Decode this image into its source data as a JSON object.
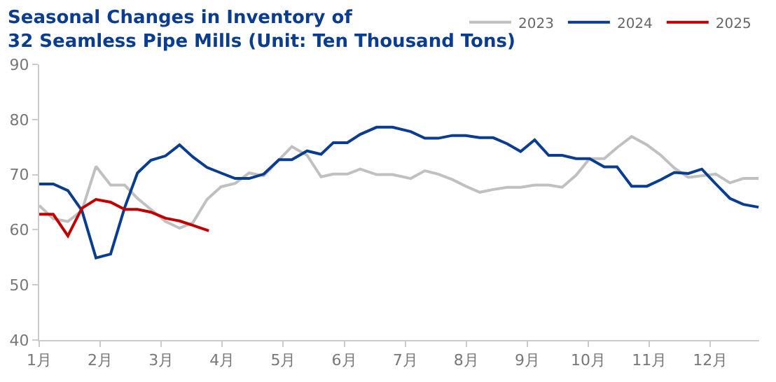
{
  "chart_data": {
    "type": "line",
    "title": "Seasonal Changes in Inventory of\n32 Seamless Pipe Mills (Unit: Ten Thousand Tons)",
    "x": [
      1.0,
      1.23,
      1.47,
      1.7,
      1.93,
      2.17,
      2.4,
      2.61,
      2.83,
      3.07,
      3.3,
      3.52,
      3.75,
      3.98,
      4.21,
      4.44,
      4.68,
      4.93,
      5.14,
      5.39,
      5.62,
      5.82,
      6.05,
      6.26,
      6.53,
      6.79,
      7.09,
      7.32,
      7.54,
      7.77,
      7.99,
      8.22,
      8.44,
      8.67,
      8.89,
      9.12,
      9.35,
      9.57,
      9.8,
      10.02,
      10.26,
      10.47,
      10.71,
      10.96,
      11.19,
      11.41,
      11.64,
      11.86,
      12.09,
      12.32,
      12.54,
      12.79
    ],
    "series": [
      {
        "name": "2023",
        "color": "#c0c0c0",
        "values": [
          64.4,
          62.0,
          61.5,
          63.5,
          71.5,
          68.1,
          68.1,
          65.7,
          63.7,
          61.5,
          60.3,
          61.3,
          65.5,
          67.8,
          68.4,
          70.3,
          69.8,
          72.7,
          75.1,
          73.5,
          69.6,
          70.1,
          70.1,
          71.0,
          70.0,
          70.0,
          69.3,
          70.7,
          70.1,
          69.1,
          67.9,
          66.8,
          67.3,
          67.7,
          67.7,
          68.1,
          68.1,
          67.7,
          69.9,
          72.9,
          72.9,
          74.9,
          76.9,
          75.4,
          73.5,
          71.2,
          69.5,
          69.8,
          70.1,
          68.5,
          69.3,
          69.3
        ]
      },
      {
        "name": "2024",
        "color": "#0a3d8f",
        "values": [
          68.3,
          68.3,
          67.1,
          63.5,
          54.9,
          55.6,
          64.0,
          70.3,
          72.6,
          73.4,
          75.4,
          73.2,
          71.3,
          70.3,
          69.3,
          69.3,
          70.1,
          72.7,
          72.7,
          74.3,
          73.7,
          75.8,
          75.8,
          77.3,
          78.6,
          78.6,
          77.8,
          76.6,
          76.6,
          77.1,
          77.1,
          76.7,
          76.7,
          75.6,
          74.2,
          76.3,
          73.5,
          73.5,
          72.9,
          72.9,
          71.4,
          71.4,
          67.9,
          67.9,
          69.1,
          70.4,
          70.2,
          71.0,
          68.3,
          65.7,
          64.6,
          64.1
        ]
      },
      {
        "name": "2025",
        "color": "#c00000",
        "x": [
          1.0,
          1.23,
          1.47,
          1.7,
          1.93,
          2.17,
          2.4,
          2.61,
          2.83,
          3.07,
          3.3,
          3.52,
          3.78
        ],
        "values": [
          62.8,
          62.8,
          58.9,
          63.9,
          65.5,
          65.0,
          63.7,
          63.7,
          63.2,
          62.1,
          61.6,
          60.8,
          59.8
        ]
      }
    ],
    "xlim": [
      1,
      12.8
    ],
    "xticks": [
      {
        "value": 1,
        "label": "1月"
      },
      {
        "value": 2,
        "label": "2月"
      },
      {
        "value": 3,
        "label": "3月"
      },
      {
        "value": 4,
        "label": "4月"
      },
      {
        "value": 5,
        "label": "5月"
      },
      {
        "value": 6,
        "label": "6月"
      },
      {
        "value": 7,
        "label": "7月"
      },
      {
        "value": 8,
        "label": "8月"
      },
      {
        "value": 9,
        "label": "9月"
      },
      {
        "value": 10,
        "label": "10月"
      },
      {
        "value": 11,
        "label": "11月"
      },
      {
        "value": 12,
        "label": "12月"
      }
    ],
    "ylim": [
      40,
      90
    ],
    "yticks": [
      40,
      50,
      60,
      70,
      80,
      90
    ],
    "grid": false,
    "legend": "top right",
    "marker": "none",
    "line_style": "solid"
  }
}
